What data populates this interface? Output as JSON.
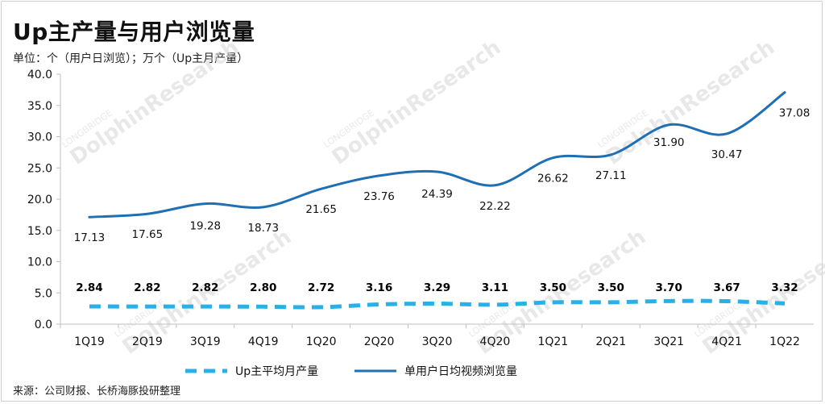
{
  "title": "Up主产量与用户浏览量",
  "subtitle": "单位：个（用户日浏览）；万个（Up主月产量）",
  "source": "来源：公司财报、长桥海豚投研整理",
  "watermark": {
    "main": "DolphinResearch",
    "small": "LONGBRIDGE"
  },
  "chart_data": {
    "type": "line",
    "categories": [
      "1Q19",
      "2Q19",
      "3Q19",
      "4Q19",
      "1Q20",
      "2Q20",
      "3Q20",
      "4Q20",
      "1Q21",
      "2Q21",
      "3Q21",
      "4Q21",
      "1Q22"
    ],
    "ylim": [
      0,
      40
    ],
    "yticks": [
      "0.0",
      "5.0",
      "10.0",
      "15.0",
      "20.0",
      "25.0",
      "30.0",
      "35.0",
      "40.0"
    ],
    "series": [
      {
        "name": "Up主平均月产量",
        "style": "dashed",
        "color": "#2ab0e8",
        "values": [
          2.84,
          2.82,
          2.82,
          2.8,
          2.72,
          3.16,
          3.29,
          3.11,
          3.5,
          3.5,
          3.7,
          3.67,
          3.32
        ],
        "labels": [
          "2.84",
          "2.82",
          "2.82",
          "2.80",
          "2.72",
          "3.16",
          "3.29",
          "3.11",
          "3.50",
          "3.50",
          "3.70",
          "3.67",
          "3.32"
        ]
      },
      {
        "name": "单用户日均视频浏览量",
        "style": "solid",
        "color": "#1f6fb5",
        "values": [
          17.13,
          17.65,
          19.28,
          18.73,
          21.65,
          23.76,
          24.39,
          22.22,
          26.62,
          27.11,
          31.9,
          30.47,
          37.08
        ],
        "labels": [
          "17.13",
          "17.65",
          "19.28",
          "18.73",
          "21.65",
          "23.76",
          "24.39",
          "22.22",
          "26.62",
          "27.11",
          "31.90",
          "30.47",
          "37.08"
        ]
      }
    ]
  }
}
